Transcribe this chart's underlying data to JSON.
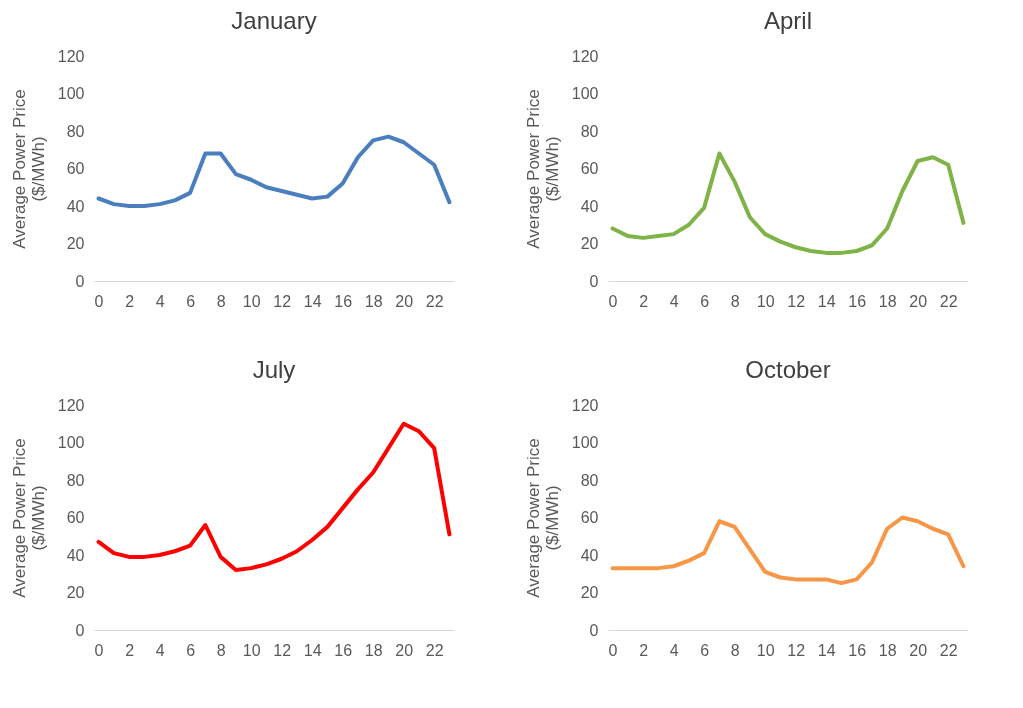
{
  "chart_data": [
    {
      "type": "line",
      "title": "January",
      "ylabel": "Average Power Price\n($/MWh)",
      "categories": [
        "0",
        null,
        "2",
        null,
        "4",
        null,
        "6",
        null,
        "8",
        null,
        "10",
        null,
        "12",
        null,
        "14",
        null,
        "16",
        null,
        "18",
        null,
        "20",
        null,
        "22",
        null
      ],
      "series": [
        {
          "color": "#4a7ebf",
          "values": [
            44,
            41,
            40,
            40,
            41,
            43,
            47,
            68,
            68,
            57,
            54,
            50,
            48,
            46,
            44,
            45,
            52,
            66,
            75,
            77,
            74,
            68,
            62,
            42
          ]
        }
      ],
      "ylim": [
        0,
        120
      ],
      "yticks": [
        0,
        20,
        40,
        60,
        80,
        100,
        120
      ],
      "grid": false
    },
    {
      "type": "line",
      "title": "April",
      "ylabel": "Average Power Price\n($/MWh)",
      "categories": [
        "0",
        null,
        "2",
        null,
        "4",
        null,
        "6",
        null,
        "8",
        null,
        "10",
        null,
        "12",
        null,
        "14",
        null,
        "16",
        null,
        "18",
        null,
        "20",
        null,
        "22",
        null
      ],
      "series": [
        {
          "color": "#7fb347",
          "values": [
            28,
            24,
            23,
            24,
            25,
            30,
            39,
            68,
            53,
            34,
            25,
            21,
            18,
            16,
            15,
            15,
            16,
            19,
            28,
            48,
            64,
            66,
            62,
            31
          ]
        }
      ],
      "ylim": [
        0,
        120
      ],
      "yticks": [
        0,
        20,
        40,
        60,
        80,
        100,
        120
      ],
      "grid": false
    },
    {
      "type": "line",
      "title": "July",
      "ylabel": "Average Power Price\n($/MWh)",
      "categories": [
        "0",
        null,
        "2",
        null,
        "4",
        null,
        "6",
        null,
        "8",
        null,
        "10",
        null,
        "12",
        null,
        "14",
        null,
        "16",
        null,
        "18",
        null,
        "20",
        null,
        "22",
        null
      ],
      "series": [
        {
          "color": "#ff0000",
          "values": [
            47,
            41,
            39,
            39,
            40,
            42,
            45,
            56,
            39,
            32,
            33,
            35,
            38,
            42,
            48,
            55,
            65,
            75,
            84,
            97,
            110,
            106,
            97,
            51
          ]
        }
      ],
      "ylim": [
        0,
        120
      ],
      "yticks": [
        0,
        20,
        40,
        60,
        80,
        100,
        120
      ],
      "grid": false
    },
    {
      "type": "line",
      "title": "October",
      "ylabel": "Average Power Price\n($/MWh)",
      "categories": [
        "0",
        null,
        "2",
        null,
        "4",
        null,
        "6",
        null,
        "8",
        null,
        "10",
        null,
        "12",
        null,
        "14",
        null,
        "16",
        null,
        "18",
        null,
        "20",
        null,
        "22",
        null
      ],
      "series": [
        {
          "color": "#f79646",
          "values": [
            33,
            33,
            33,
            33,
            34,
            37,
            41,
            58,
            55,
            43,
            31,
            28,
            27,
            27,
            27,
            25,
            27,
            36,
            54,
            60,
            58,
            54,
            51,
            34
          ]
        }
      ],
      "ylim": [
        0,
        120
      ],
      "yticks": [
        0,
        20,
        40,
        60,
        80,
        100,
        120
      ],
      "grid": false
    }
  ]
}
